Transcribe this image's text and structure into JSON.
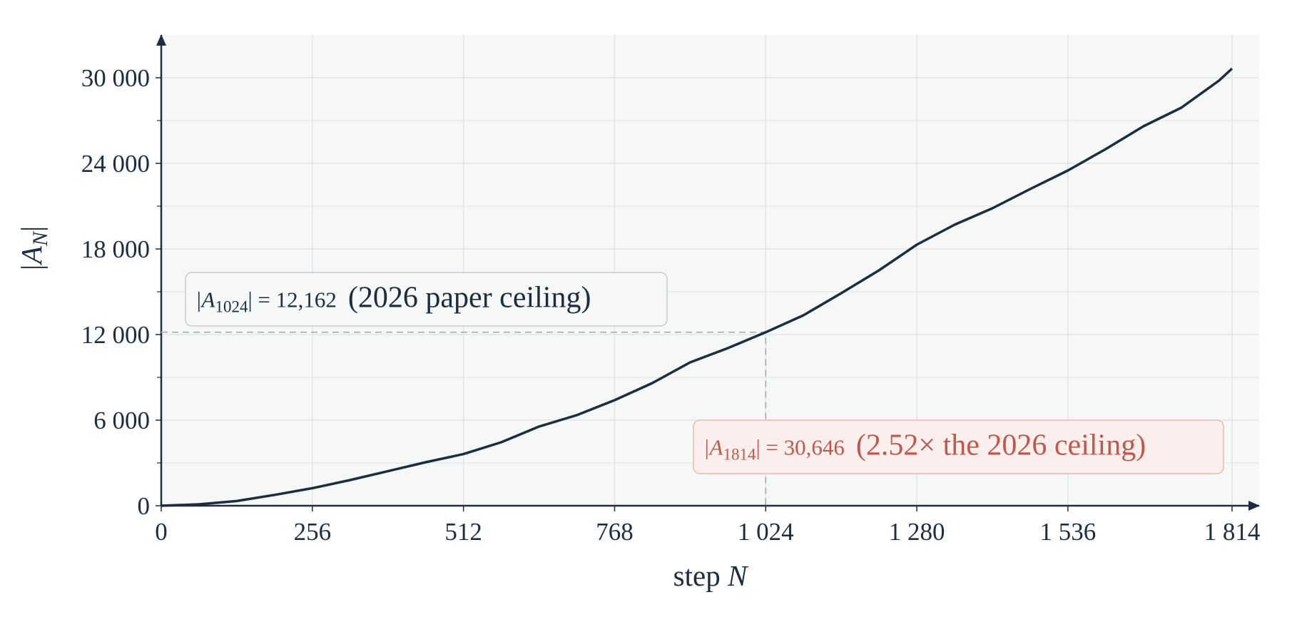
{
  "chart_data": {
    "type": "line",
    "x_label": {
      "text": "step ",
      "italic": "N"
    },
    "y_label": {
      "prefix": "|A",
      "subscript": "N",
      "suffix": "|"
    },
    "x": [
      0,
      64,
      128,
      192,
      256,
      320,
      384,
      448,
      512,
      576,
      640,
      704,
      768,
      832,
      896,
      960,
      1024,
      1088,
      1152,
      1216,
      1280,
      1344,
      1408,
      1472,
      1536,
      1600,
      1664,
      1728,
      1792,
      1814
    ],
    "series": [
      {
        "color": "#1b2d3e",
        "values": [
          0,
          100,
          330,
          760,
          1230,
          1800,
          2420,
          3050,
          3620,
          4450,
          5550,
          6350,
          7400,
          8600,
          10050,
          11050,
          12162,
          13350,
          14900,
          16500,
          18300,
          19700,
          20850,
          22200,
          23500,
          25000,
          26600,
          27900,
          29800,
          30646
        ]
      }
    ],
    "xlim": [
      0,
      1860
    ],
    "ylim": [
      0,
      33000
    ],
    "xticks": [
      0,
      256,
      512,
      768,
      {
        "value": 1024,
        "label": "1 024"
      },
      {
        "value": 1280,
        "label": "1 280"
      },
      {
        "value": 1536,
        "label": "1 536"
      },
      {
        "value": 1814,
        "label": "1 814"
      }
    ],
    "yticks": [
      0,
      {
        "value": 6000,
        "label": "6 000"
      },
      {
        "value": 12000,
        "label": "12 000"
      },
      {
        "value": 18000,
        "label": "18 000"
      },
      {
        "value": 24000,
        "label": "24 000"
      },
      {
        "value": 30000,
        "label": "30 000"
      }
    ],
    "yminorticks": [
      3000,
      9000,
      15000,
      21000,
      27000
    ],
    "grid": true,
    "annotations": [
      {
        "prefix": "|A",
        "subscript": "1024",
        "suffix": "| = 12,162",
        "note": "(2026 paper ceiling)",
        "x": 1024,
        "y": 12162,
        "guide": true,
        "color": "#1b2d3e"
      },
      {
        "prefix": "|A",
        "subscript": "1814",
        "suffix": "| = 30,646",
        "note": "(2.52× the 2026 ceiling)",
        "x": 1814,
        "y": 30646,
        "guide": false,
        "color": "#c0584c"
      }
    ]
  }
}
